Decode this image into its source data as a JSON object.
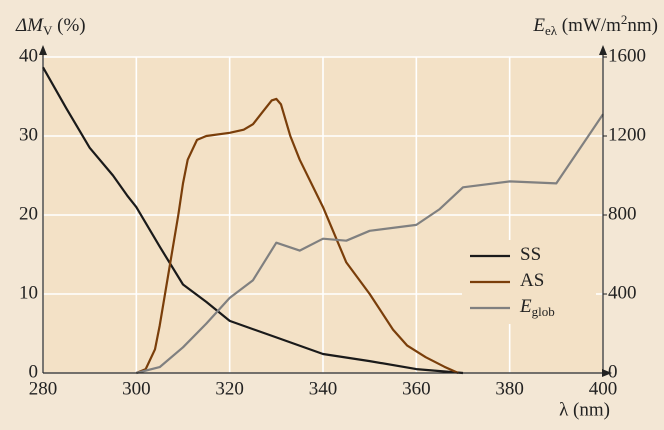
{
  "chart_data": {
    "type": "line",
    "y_label": [
      "ΔM",
      "V",
      " (%)"
    ],
    "y2_label": [
      "E",
      "eλ",
      " (mW/m",
      "2",
      "nm)"
    ],
    "x_label": "λ (nm)",
    "xlim": [
      280,
      400
    ],
    "xticks": [
      280,
      300,
      320,
      340,
      360,
      380,
      400
    ],
    "ylim": [
      0,
      40
    ],
    "yticks": [
      0,
      10,
      20,
      30,
      40
    ],
    "y2lim": [
      0,
      1600
    ],
    "y2ticks": [
      0,
      400,
      800,
      1200,
      1600
    ],
    "grid": true,
    "legend": "right",
    "series": [
      {
        "name": "SS",
        "color": "#1a1a1a",
        "x": [
          280,
          285,
          290,
          295,
          298,
          300,
          305,
          310,
          315,
          320,
          330,
          340,
          350,
          360,
          370
        ],
        "values": [
          38.7,
          33.5,
          28.5,
          25,
          22.5,
          21,
          16,
          11.2,
          9,
          6.6,
          4.5,
          2.4,
          1.5,
          0.5,
          0
        ]
      },
      {
        "name": "AS",
        "color": "#7a3e0a",
        "x": [
          300,
          302,
          304,
          305,
          307,
          309,
          310,
          311,
          313,
          315,
          320,
          323,
          325,
          327,
          329,
          330,
          331,
          333,
          335,
          340,
          345,
          350,
          355,
          358,
          362,
          366,
          369
        ],
        "values": [
          0,
          0.5,
          3,
          6,
          13,
          20,
          24,
          27,
          29.5,
          30,
          30.4,
          30.8,
          31.5,
          33,
          34.5,
          34.7,
          34,
          30,
          27,
          21,
          14,
          10,
          5.5,
          3.5,
          2,
          0.8,
          0
        ]
      },
      {
        "name": "E",
        "name_sub": "glob",
        "color": "#808080",
        "axis": "y2",
        "x": [
          300,
          305,
          310,
          315,
          320,
          325,
          330,
          335,
          340,
          345,
          350,
          360,
          365,
          370,
          380,
          390,
          400
        ],
        "values": [
          0,
          30,
          130,
          250,
          380,
          470,
          660,
          620,
          680,
          670,
          720,
          750,
          830,
          940,
          970,
          960,
          1310
        ]
      }
    ]
  }
}
